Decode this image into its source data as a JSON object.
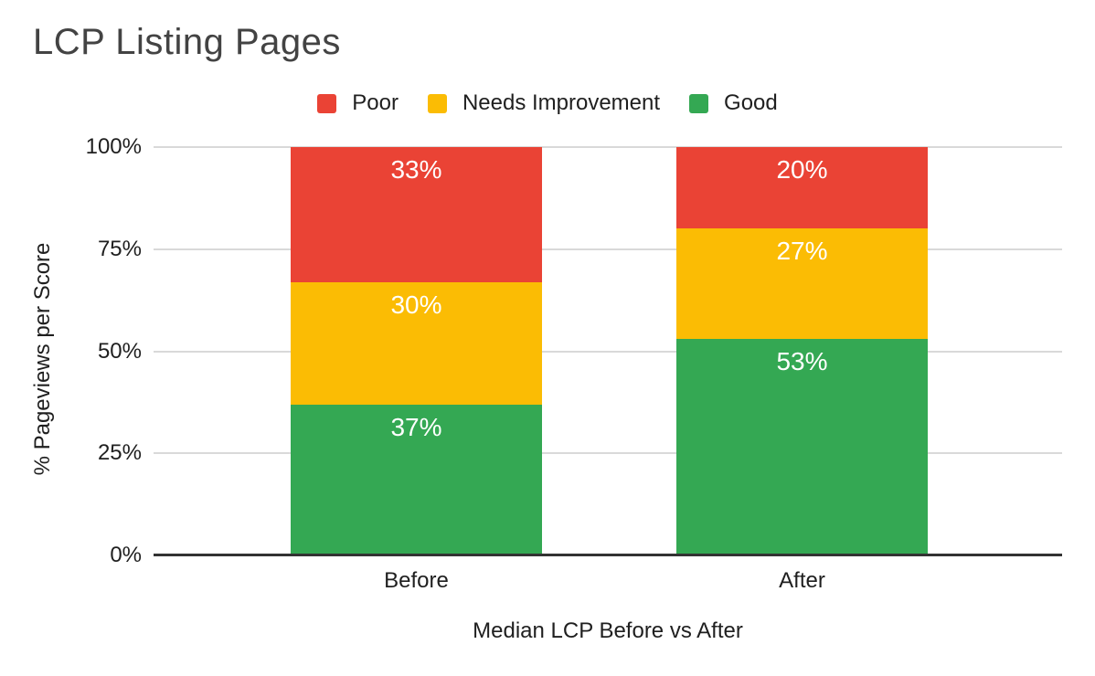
{
  "chart_data": {
    "type": "bar",
    "subtype": "stacked-100-percent-column",
    "title": "LCP Listing Pages",
    "xlabel": "Median LCP Before vs After",
    "ylabel": "% Pageviews per Score",
    "categories": [
      "Before",
      "After"
    ],
    "series": [
      {
        "name": "Poor",
        "color": "#EA4335",
        "values": [
          33,
          20
        ]
      },
      {
        "name": "Needs Improvement",
        "color": "#FBBC04",
        "values": [
          30,
          27
        ]
      },
      {
        "name": "Good",
        "color": "#34A853",
        "values": [
          37,
          53
        ]
      }
    ],
    "stack_order_top_to_bottom": [
      "Poor",
      "Needs Improvement",
      "Good"
    ],
    "y_ticks": [
      0,
      25,
      50,
      75,
      100
    ],
    "y_tick_format": "{v}%",
    "ylim": [
      0,
      100
    ],
    "grid": true,
    "legend_position": "top-center",
    "data_labels": "inside-top",
    "data_label_format": "{v}%"
  },
  "style": {
    "background": "#ffffff",
    "title_color": "#434343",
    "text_color": "#1f1f1f",
    "gridline_color": "#d9d9d9",
    "baseline_color": "#333333",
    "data_label_color": "#ffffff"
  }
}
